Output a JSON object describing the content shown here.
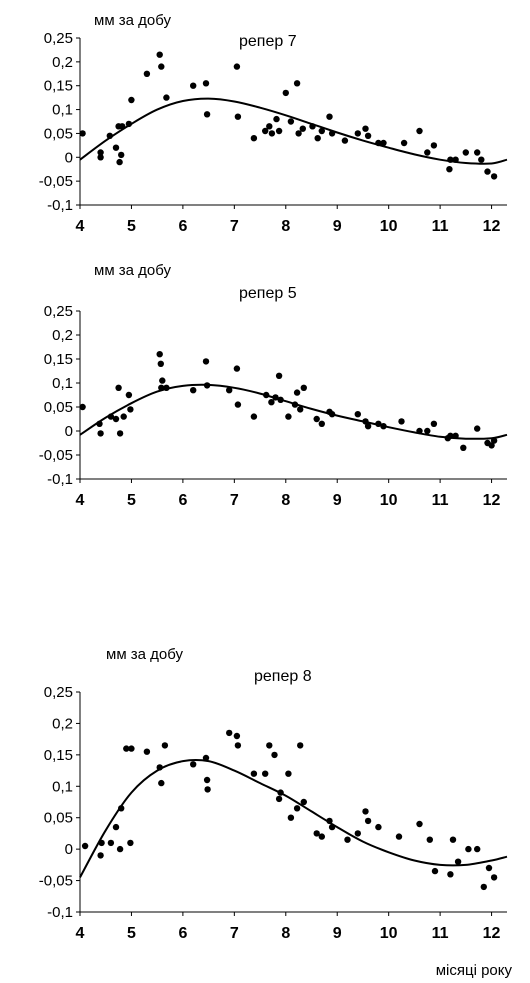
{
  "figure": {
    "x_axis_label": "місяці року"
  },
  "chart_data": [
    {
      "type": "scatter",
      "title": "репер 7",
      "ylabel": "мм за добу",
      "xlabel": "",
      "xlim": [
        4,
        12.3
      ],
      "ylim": [
        -0.1,
        0.25
      ],
      "xticks": [
        4,
        5,
        6,
        7,
        8,
        9,
        10,
        11,
        12
      ],
      "yticks": [
        "-0,1",
        "-0,05",
        "0",
        "0,05",
        "0,1",
        "0,15",
        "0,2",
        "0,25"
      ],
      "yticks_values": [
        -0.1,
        -0.05,
        0,
        0.05,
        0.1,
        0.15,
        0.2,
        0.25
      ],
      "grid": false,
      "series": [
        {
          "kind": "points",
          "x": [
            4.05,
            4.4,
            4.4,
            4.58,
            4.7,
            4.75,
            4.77,
            4.8,
            4.82,
            4.95,
            5.0,
            5.3,
            5.55,
            5.58,
            5.68,
            6.2,
            6.45,
            6.47,
            7.05,
            7.07,
            7.38,
            7.6,
            7.68,
            7.73,
            7.82,
            7.87,
            8.0,
            8.1,
            8.22,
            8.25,
            8.33,
            8.52,
            8.62,
            8.7,
            8.85,
            8.9,
            9.15,
            9.4,
            9.55,
            9.6,
            9.8,
            9.9,
            10.3,
            10.6,
            10.75,
            10.88,
            11.18,
            11.2,
            11.3,
            11.5,
            11.72,
            11.8,
            11.92,
            12.05
          ],
          "y": [
            0.05,
            0.01,
            0.0,
            0.045,
            0.02,
            0.065,
            -0.01,
            0.005,
            0.065,
            0.07,
            0.12,
            0.175,
            0.215,
            0.19,
            0.125,
            0.15,
            0.155,
            0.09,
            0.19,
            0.085,
            0.04,
            0.055,
            0.065,
            0.05,
            0.08,
            0.055,
            0.135,
            0.075,
            0.155,
            0.05,
            0.06,
            0.065,
            0.04,
            0.055,
            0.085,
            0.05,
            0.035,
            0.05,
            0.06,
            0.045,
            0.03,
            0.03,
            0.03,
            0.055,
            0.01,
            0.025,
            -0.025,
            -0.005,
            -0.005,
            0.01,
            0.01,
            -0.005,
            -0.03,
            -0.04
          ]
        },
        {
          "kind": "trend",
          "x": [
            4.0,
            4.5,
            5.0,
            5.5,
            6.0,
            6.5,
            7.0,
            7.5,
            8.0,
            8.5,
            9.0,
            9.5,
            10.0,
            10.5,
            11.0,
            11.5,
            12.0,
            12.3
          ],
          "y": [
            -0.005,
            0.035,
            0.07,
            0.1,
            0.118,
            0.123,
            0.117,
            0.104,
            0.088,
            0.07,
            0.052,
            0.035,
            0.02,
            0.006,
            -0.005,
            -0.012,
            -0.013,
            -0.005
          ]
        }
      ]
    },
    {
      "type": "scatter",
      "title": "репер 5",
      "ylabel": "мм за добу",
      "xlabel": "",
      "xlim": [
        4,
        12.3
      ],
      "ylim": [
        -0.1,
        0.25
      ],
      "xticks": [
        4,
        5,
        6,
        7,
        8,
        9,
        10,
        11,
        12
      ],
      "yticks": [
        "-0,1",
        "-0,05",
        "0",
        "0,05",
        "0,1",
        "0,15",
        "0,2",
        "0,25"
      ],
      "yticks_values": [
        -0.1,
        -0.05,
        0,
        0.05,
        0.1,
        0.15,
        0.2,
        0.25
      ],
      "grid": false,
      "series": [
        {
          "kind": "points",
          "x": [
            4.05,
            4.38,
            4.4,
            4.6,
            4.7,
            4.75,
            4.78,
            4.85,
            4.95,
            4.98,
            5.55,
            5.57,
            5.6,
            5.58,
            5.68,
            6.2,
            6.45,
            6.47,
            6.9,
            7.05,
            7.07,
            7.38,
            7.62,
            7.72,
            7.8,
            7.87,
            7.9,
            8.05,
            8.18,
            8.22,
            8.28,
            8.35,
            8.6,
            8.7,
            8.85,
            8.9,
            9.4,
            9.55,
            9.6,
            9.8,
            9.9,
            10.25,
            10.6,
            10.75,
            10.88,
            11.15,
            11.2,
            11.3,
            11.45,
            11.72,
            11.92,
            12.0,
            12.05
          ],
          "y": [
            0.05,
            0.015,
            -0.005,
            0.03,
            0.025,
            0.09,
            -0.005,
            0.03,
            0.075,
            0.045,
            0.16,
            0.14,
            0.105,
            0.09,
            0.09,
            0.085,
            0.145,
            0.095,
            0.085,
            0.13,
            0.055,
            0.03,
            0.075,
            0.06,
            0.07,
            0.115,
            0.065,
            0.03,
            0.055,
            0.08,
            0.045,
            0.09,
            0.025,
            0.015,
            0.04,
            0.035,
            0.035,
            0.02,
            0.01,
            0.015,
            0.01,
            0.02,
            0.0,
            0.0,
            0.015,
            -0.015,
            -0.01,
            -0.01,
            -0.035,
            0.005,
            -0.025,
            -0.03,
            -0.02
          ]
        },
        {
          "kind": "trend",
          "x": [
            4.0,
            4.5,
            5.0,
            5.5,
            6.0,
            6.5,
            7.0,
            7.5,
            8.0,
            8.5,
            9.0,
            9.5,
            10.0,
            10.5,
            11.0,
            11.5,
            12.0,
            12.3
          ],
          "y": [
            -0.008,
            0.028,
            0.058,
            0.082,
            0.094,
            0.096,
            0.09,
            0.078,
            0.062,
            0.046,
            0.032,
            0.02,
            0.008,
            -0.003,
            -0.012,
            -0.016,
            -0.015,
            -0.008
          ]
        }
      ]
    },
    {
      "type": "scatter",
      "title": "репер 8",
      "ylabel": "мм за добу",
      "xlabel": "",
      "xlim": [
        4,
        12.3
      ],
      "ylim": [
        -0.1,
        0.25
      ],
      "xticks": [
        4,
        5,
        6,
        7,
        8,
        9,
        10,
        11,
        12
      ],
      "yticks": [
        "-0,1",
        "-0,05",
        "0",
        "0,05",
        "0,1",
        "0,15",
        "0,2",
        "0,25"
      ],
      "yticks_values": [
        -0.1,
        -0.05,
        0,
        0.05,
        0.1,
        0.15,
        0.2,
        0.25
      ],
      "grid": false,
      "series": [
        {
          "kind": "points",
          "x": [
            4.1,
            4.4,
            4.42,
            4.6,
            4.7,
            4.78,
            4.8,
            4.9,
            4.98,
            5.0,
            5.3,
            5.55,
            5.58,
            5.65,
            6.2,
            6.45,
            6.47,
            6.48,
            6.9,
            7.05,
            7.07,
            7.38,
            7.6,
            7.68,
            7.78,
            7.87,
            7.9,
            8.05,
            8.1,
            8.22,
            8.28,
            8.35,
            8.6,
            8.7,
            8.85,
            8.9,
            9.2,
            9.4,
            9.55,
            9.6,
            9.8,
            10.2,
            10.6,
            10.8,
            10.9,
            11.2,
            11.25,
            11.35,
            11.55,
            11.72,
            11.85,
            11.95,
            12.05
          ],
          "y": [
            0.005,
            -0.01,
            0.01,
            0.01,
            0.035,
            0.0,
            0.065,
            0.16,
            0.01,
            0.16,
            0.155,
            0.13,
            0.105,
            0.165,
            0.135,
            0.145,
            0.11,
            0.095,
            0.185,
            0.18,
            0.165,
            0.12,
            0.12,
            0.165,
            0.15,
            0.08,
            0.09,
            0.12,
            0.05,
            0.065,
            0.165,
            0.075,
            0.025,
            0.02,
            0.045,
            0.035,
            0.015,
            0.025,
            0.06,
            0.045,
            0.035,
            0.02,
            0.04,
            0.015,
            -0.035,
            -0.04,
            0.015,
            -0.02,
            0.0,
            0.0,
            -0.06,
            -0.03,
            -0.045
          ]
        },
        {
          "kind": "trend",
          "x": [
            4.0,
            4.5,
            5.0,
            5.5,
            6.0,
            6.5,
            7.0,
            7.5,
            8.0,
            8.5,
            9.0,
            9.5,
            10.0,
            10.5,
            11.0,
            11.5,
            12.0,
            12.3
          ],
          "y": [
            -0.045,
            0.03,
            0.09,
            0.125,
            0.14,
            0.14,
            0.125,
            0.105,
            0.085,
            0.06,
            0.035,
            0.012,
            -0.005,
            -0.018,
            -0.025,
            -0.025,
            -0.018,
            -0.012
          ]
        }
      ]
    }
  ]
}
